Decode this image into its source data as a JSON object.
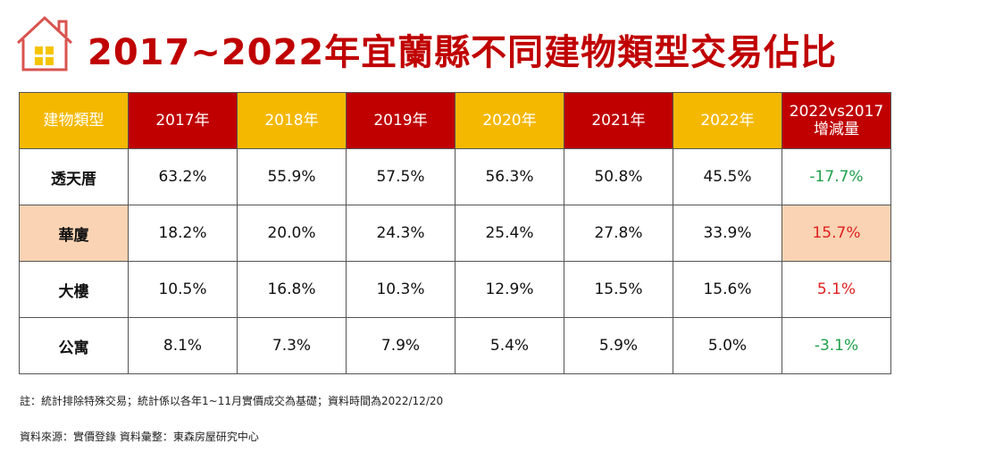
{
  "header": {
    "title": "2017~2022年宜蘭縣不同建物類型交易佔比"
  },
  "table": {
    "headers": [
      "建物類型",
      "2017年",
      "2018年",
      "2019年",
      "2020年",
      "2021年",
      "2022年",
      [
        "2022vs2017",
        "增減量"
      ]
    ],
    "rows": [
      [
        "透天厝",
        "63.2%",
        "55.9%",
        "57.5%",
        "56.3%",
        "50.8%",
        "45.5%",
        "-17.7%"
      ],
      [
        "華廈",
        "18.2%",
        "20.0%",
        "24.3%",
        "25.4%",
        "27.8%",
        "33.9%",
        "15.7%"
      ],
      [
        "大樓",
        "10.5%",
        "16.8%",
        "10.3%",
        "12.9%",
        "15.5%",
        "15.6%",
        "5.1%"
      ],
      [
        "公寓",
        "8.1%",
        "7.3%",
        "7.9%",
        "5.4%",
        "5.9%",
        "5.0%",
        "-3.1%"
      ]
    ]
  },
  "notes": [
    "註：統計排除特殊交易；統計係以各年1~11月實價成交為基礎；資料時間為2022/12/20",
    "資料來源：實價登錄 資料彙整：東森房屋研究中心"
  ]
}
